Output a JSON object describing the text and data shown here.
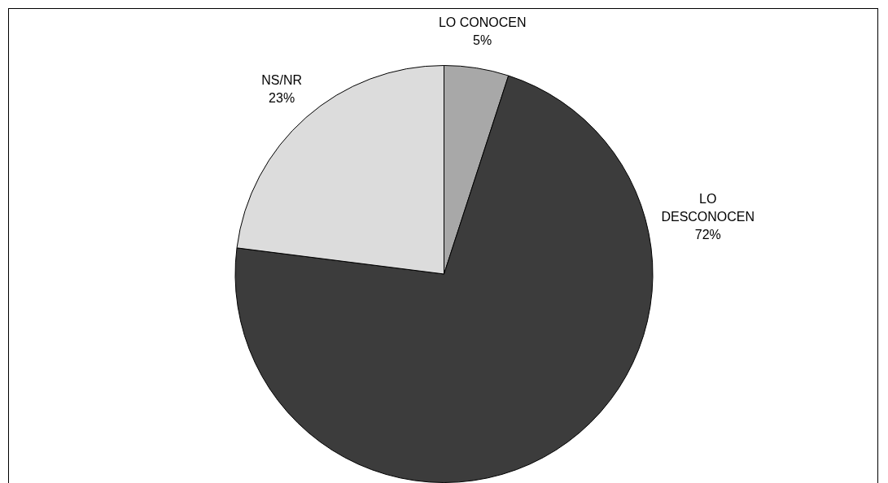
{
  "chart_data": {
    "type": "pie",
    "categories": [
      "LO CONOCEN",
      "LO DESCONOCEN",
      "NS/NR"
    ],
    "values": [
      5,
      72,
      23
    ],
    "colors": [
      "#a8a8a8",
      "#3c3c3c",
      "#dcdcdc"
    ],
    "value_labels": [
      "5%",
      "72%",
      "23%"
    ],
    "legend": false
  }
}
